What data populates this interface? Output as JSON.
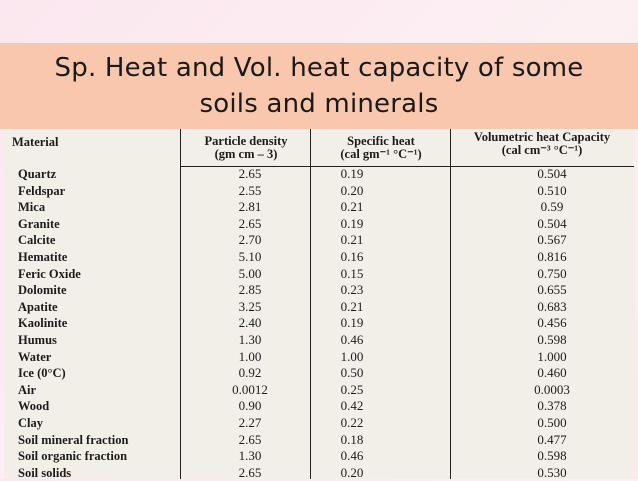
{
  "title": {
    "line1": "Sp. Heat and Vol. heat capacity of some",
    "line2": "soils and minerals"
  },
  "table": {
    "headers": {
      "material": "Material",
      "particle_density_1": "Particle density",
      "particle_density_2": "(gm cm – 3)",
      "specific_heat_1": "Specific heat",
      "specific_heat_2": "(cal gm⁻¹ °C⁻¹)",
      "vol_heat_1": "Volumetric heat Capacity",
      "vol_heat_2": "(cal cm⁻³ °C⁻¹)"
    },
    "rows": [
      {
        "material": "Quartz",
        "density": "2.65",
        "specific_heat": "0.19",
        "vol_heat": "0.504"
      },
      {
        "material": "Feldspar",
        "density": "2.55",
        "specific_heat": "0.20",
        "vol_heat": "0.510"
      },
      {
        "material": "Mica",
        "density": "2.81",
        "specific_heat": "0.21",
        "vol_heat": "0.59"
      },
      {
        "material": "Granite",
        "density": "2.65",
        "specific_heat": "0.19",
        "vol_heat": "0.504"
      },
      {
        "material": "Calcite",
        "density": "2.70",
        "specific_heat": "0.21",
        "vol_heat": "0.567"
      },
      {
        "material": "Hematite",
        "density": "5.10",
        "specific_heat": "0.16",
        "vol_heat": "0.816"
      },
      {
        "material": "Feric Oxide",
        "density": "5.00",
        "specific_heat": "0.15",
        "vol_heat": "0.750"
      },
      {
        "material": "Dolomite",
        "density": "2.85",
        "specific_heat": "0.23",
        "vol_heat": "0.655"
      },
      {
        "material": "Apatite",
        "density": "3.25",
        "specific_heat": "0.21",
        "vol_heat": "0.683"
      },
      {
        "material": "Kaolinite",
        "density": "2.40",
        "specific_heat": "0.19",
        "vol_heat": "0.456"
      },
      {
        "material": "Humus",
        "density": "1.30",
        "specific_heat": "0.46",
        "vol_heat": "0.598"
      },
      {
        "material": "Water",
        "density": "1.00",
        "specific_heat": "1.00",
        "vol_heat": "1.000"
      },
      {
        "material": "Ice (0°C)",
        "density": "0.92",
        "specific_heat": "0.50",
        "vol_heat": "0.460"
      },
      {
        "material": "Air",
        "density": "0.0012",
        "specific_heat": "0.25",
        "vol_heat": "0.0003"
      },
      {
        "material": "Wood",
        "density": "0.90",
        "specific_heat": "0.42",
        "vol_heat": "0.378"
      },
      {
        "material": "Clay",
        "density": "2.27",
        "specific_heat": "0.22",
        "vol_heat": "0.500"
      },
      {
        "material": "Soil mineral fraction",
        "density": "2.65",
        "specific_heat": "0.18",
        "vol_heat": "0.477"
      },
      {
        "material": "Soil organic fraction",
        "density": "1.30",
        "specific_heat": "0.46",
        "vol_heat": "0.598"
      },
      {
        "material": "Soil solids",
        "density": "2.65",
        "specific_heat": "0.20",
        "vol_heat": "0.530"
      }
    ]
  }
}
